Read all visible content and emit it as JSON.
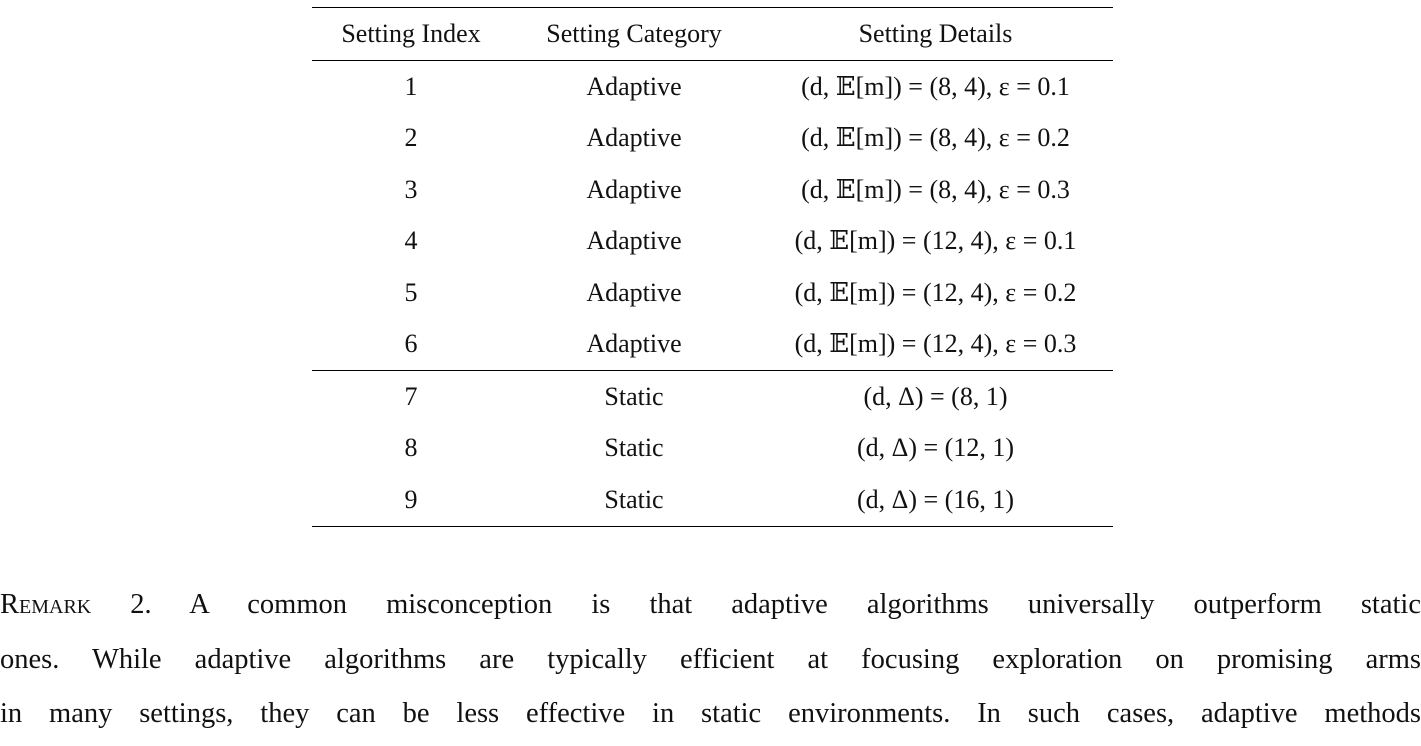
{
  "table": {
    "headers": [
      "Setting Index",
      "Setting Category",
      "Setting Details"
    ],
    "rows": [
      {
        "index": "1",
        "category": "Adaptive",
        "details": "(d, 𝔼[m]) = (8, 4),  ε = 0.1"
      },
      {
        "index": "2",
        "category": "Adaptive",
        "details": "(d, 𝔼[m]) = (8, 4),  ε = 0.2"
      },
      {
        "index": "3",
        "category": "Adaptive",
        "details": "(d, 𝔼[m]) = (8, 4),  ε = 0.3"
      },
      {
        "index": "4",
        "category": "Adaptive",
        "details": "(d, 𝔼[m]) = (12, 4),  ε = 0.1"
      },
      {
        "index": "5",
        "category": "Adaptive",
        "details": "(d, 𝔼[m]) = (12, 4),  ε = 0.2"
      },
      {
        "index": "6",
        "category": "Adaptive",
        "details": "(d, 𝔼[m]) = (12, 4),  ε = 0.3"
      },
      {
        "index": "7",
        "category": "Static",
        "details": "(d, Δ) = (8, 1)"
      },
      {
        "index": "8",
        "category": "Static",
        "details": "(d, Δ) = (12, 1)"
      },
      {
        "index": "9",
        "category": "Static",
        "details": "(d, Δ) = (16, 1)"
      }
    ]
  },
  "remark": {
    "label": "Remark 2.",
    "lines": [
      "A common misconception is that adaptive algorithms universally outperform static",
      "ones. While adaptive algorithms are typically efficient at focusing exploration on promising arms",
      "in many settings, they can be less effective in static environments. In such cases, adaptive methods"
    ]
  }
}
